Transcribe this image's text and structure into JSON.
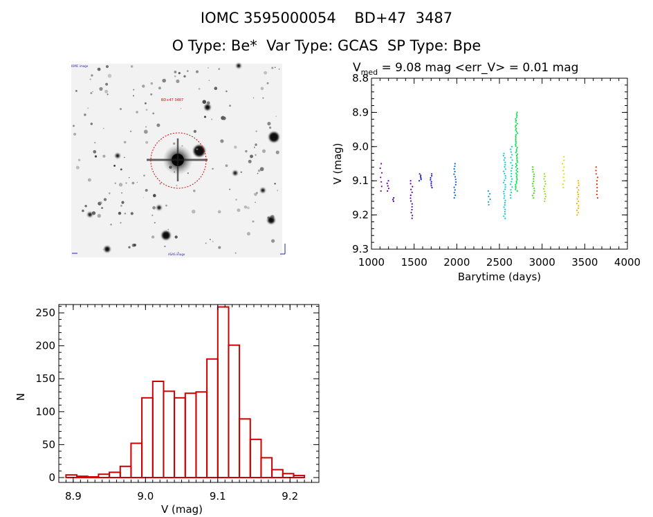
{
  "header": {
    "title_line1": "IOMC 3595000054    BD+47  3487",
    "title_line2": "O Type: Be*  Var Type: GCAS  SP Type: Bpe"
  },
  "colors": {
    "histogram": "#cc0000",
    "axes": "#000000",
    "season_colors": [
      "#7a0099",
      "#5a00a8",
      "#3300b0",
      "#1a1ab8",
      "#1010cc",
      "#0060dd",
      "#00a0dd",
      "#00c8e0",
      "#00d8b0",
      "#00e040",
      "#30e000",
      "#8ce000",
      "#d8e000",
      "#f0b000",
      "#f07800",
      "#e03000"
    ]
  },
  "image_panel": {
    "top_left_label": "IOMC image",
    "target_label": "BD+47 3487",
    "bottom_label": "ASAS image",
    "circle_color": "#dd0000"
  },
  "chart_data": [
    {
      "type": "scatter",
      "title": "V",
      "title_sub": "med",
      "title_rest": " = 9.08 mag <err_V> = 0.01 mag",
      "xlabel": "Barytime (days)",
      "ylabel": "V (mag)",
      "xlim": [
        1000,
        4000
      ],
      "ylim": [
        9.3,
        8.8
      ],
      "y_inverted": true,
      "xticks": [
        1000,
        1500,
        2000,
        2500,
        3000,
        3500,
        4000
      ],
      "yticks": [
        8.8,
        8.9,
        9.0,
        9.1,
        9.2,
        9.3
      ],
      "ytick_labels": [
        "8.8",
        "8.9",
        "9.0",
        "9.1",
        "9.2",
        "9.3"
      ],
      "groups": [
        {
          "x": 1110,
          "ymin": 9.05,
          "ymax": 9.13,
          "n": 7,
          "color_index": 0
        },
        {
          "x": 1190,
          "ymin": 9.1,
          "ymax": 9.13,
          "n": 5,
          "color_index": 1
        },
        {
          "x": 1250,
          "ymin": 9.15,
          "ymax": 9.16,
          "n": 3,
          "color_index": 2
        },
        {
          "x": 1470,
          "ymin": 9.1,
          "ymax": 9.21,
          "n": 14,
          "color_index": 1
        },
        {
          "x": 1570,
          "ymin": 9.08,
          "ymax": 9.1,
          "n": 6,
          "color_index": 3
        },
        {
          "x": 1700,
          "ymin": 9.08,
          "ymax": 9.12,
          "n": 8,
          "color_index": 4
        },
        {
          "x": 1980,
          "ymin": 9.05,
          "ymax": 9.15,
          "n": 14,
          "color_index": 5
        },
        {
          "x": 2380,
          "ymin": 9.13,
          "ymax": 9.17,
          "n": 6,
          "color_index": 6
        },
        {
          "x": 2560,
          "ymin": 9.02,
          "ymax": 9.21,
          "n": 30,
          "color_index": 7
        },
        {
          "x": 2640,
          "ymin": 9.0,
          "ymax": 9.15,
          "n": 20,
          "color_index": 8
        },
        {
          "x": 2700,
          "ymin": 8.9,
          "ymax": 9.13,
          "n": 50,
          "color_index": 9
        },
        {
          "x": 2900,
          "ymin": 9.06,
          "ymax": 9.15,
          "n": 14,
          "color_index": 10
        },
        {
          "x": 3030,
          "ymin": 9.08,
          "ymax": 9.16,
          "n": 12,
          "color_index": 11
        },
        {
          "x": 3250,
          "ymin": 9.03,
          "ymax": 9.12,
          "n": 10,
          "color_index": 12
        },
        {
          "x": 3420,
          "ymin": 9.1,
          "ymax": 9.2,
          "n": 16,
          "color_index": 13
        },
        {
          "x": 3640,
          "ymin": 9.06,
          "ymax": 9.15,
          "n": 10,
          "color_index": 15
        }
      ]
    },
    {
      "type": "bar",
      "subtype": "histogram",
      "xlabel": "V (mag)",
      "ylabel": "N",
      "xlim": [
        8.88,
        9.24
      ],
      "ylim": [
        0,
        270
      ],
      "xticks": [
        8.9,
        9.0,
        9.1,
        9.2
      ],
      "xtick_labels": [
        "8.9",
        "9.0",
        "9.1",
        "9.2"
      ],
      "yticks": [
        0,
        50,
        100,
        150,
        200,
        250
      ],
      "bin_edges": [
        8.89,
        8.905,
        8.92,
        8.935,
        8.95,
        8.965,
        8.98,
        8.995,
        9.01,
        9.025,
        9.04,
        9.055,
        9.07,
        9.085,
        9.1,
        9.115,
        9.13,
        9.145,
        9.16,
        9.175,
        9.19,
        9.205,
        9.22
      ],
      "values": [
        4,
        2,
        1,
        5,
        8,
        17,
        52,
        121,
        146,
        131,
        121,
        128,
        130,
        180,
        259,
        201,
        89,
        58,
        30,
        12,
        6,
        3
      ]
    }
  ]
}
